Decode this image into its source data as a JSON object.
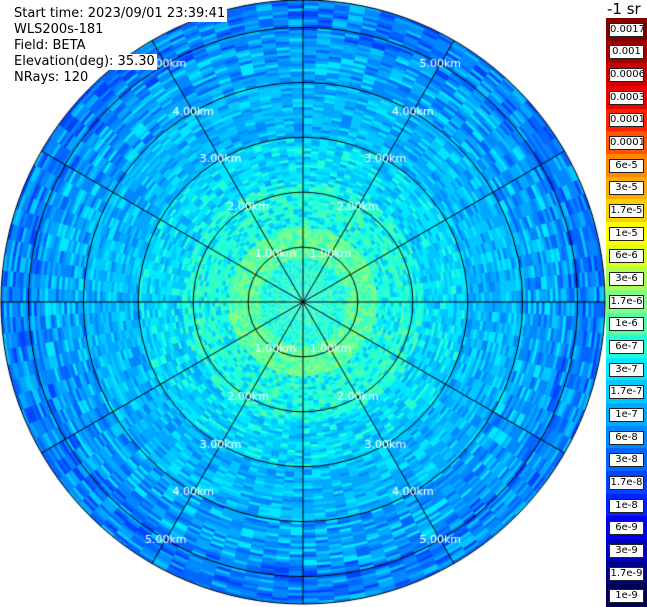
{
  "header": {
    "start_time": "Start time: 2023/09/01 23:39:41",
    "instrument": "WLS200s-181",
    "field": "Field: BETA",
    "elevation": "Elevation(deg): 35.30",
    "nrays": "NRays: 120"
  },
  "range_rings": {
    "unit_label_suffix": "km",
    "labels": [
      "1.00km",
      "2.00km",
      "3.00km",
      "4.00km",
      "5.00km"
    ]
  },
  "colorbar": {
    "unit": "-1 sr",
    "bins": [
      {
        "label": "0.0017",
        "color": "#7f0000"
      },
      {
        "label": "0.001",
        "color": "#a50000"
      },
      {
        "label": "0.0006",
        "color": "#c80000"
      },
      {
        "label": "0.0003",
        "color": "#ee0000"
      },
      {
        "label": "0.00017",
        "color": "#ff2200"
      },
      {
        "label": "0.0001",
        "color": "#ff5500"
      },
      {
        "label": "6e-5",
        "color": "#ff8800"
      },
      {
        "label": "3e-5",
        "color": "#ffaa00"
      },
      {
        "label": "1.7e-5",
        "color": "#ffd000"
      },
      {
        "label": "1e-5",
        "color": "#ffff00"
      },
      {
        "label": "6e-6",
        "color": "#d8ff20"
      },
      {
        "label": "3e-6",
        "color": "#a8ff50"
      },
      {
        "label": "1.7e-6",
        "color": "#80ff80"
      },
      {
        "label": "1e-6",
        "color": "#50ffa8"
      },
      {
        "label": "6e-7",
        "color": "#20ffd8"
      },
      {
        "label": "3e-7",
        "color": "#00e8ff"
      },
      {
        "label": "1.7e-7",
        "color": "#00c8ff"
      },
      {
        "label": "1e-7",
        "color": "#00a8ff"
      },
      {
        "label": "6e-8",
        "color": "#0088ff"
      },
      {
        "label": "3e-8",
        "color": "#0066ff"
      },
      {
        "label": "1.7e-8",
        "color": "#0044ff"
      },
      {
        "label": "1e-8",
        "color": "#0022ff"
      },
      {
        "label": "6e-9",
        "color": "#0000ee"
      },
      {
        "label": "3e-9",
        "color": "#0000bb"
      },
      {
        "label": "1.7e-9",
        "color": "#000088"
      },
      {
        "label": "1e-9",
        "color": "#000055"
      }
    ]
  },
  "display": {
    "spokes": 12,
    "max_range_km": 5.5,
    "ring_label_azimuths_deg": [
      -30,
      30,
      150,
      210
    ]
  }
}
